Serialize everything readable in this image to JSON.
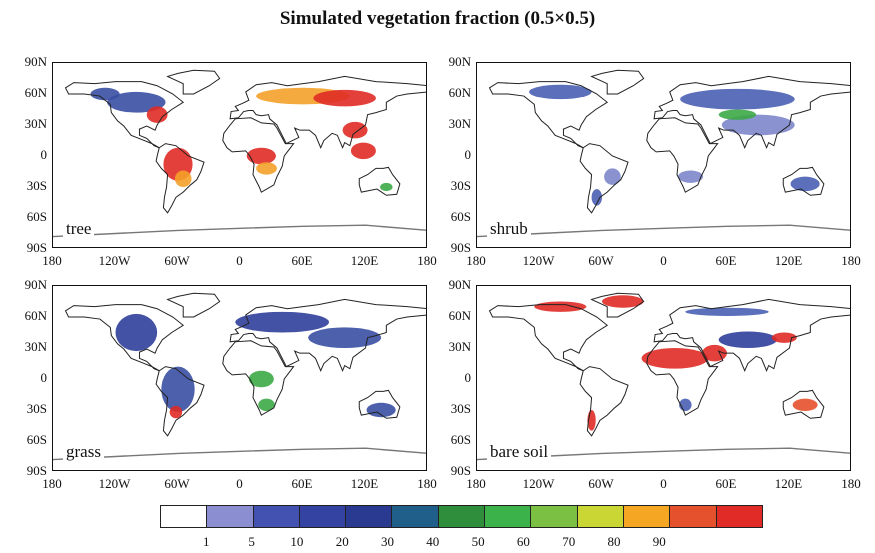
{
  "title": "Simulated vegetation fraction (0.5×0.5)",
  "panels": [
    {
      "label": "tree",
      "dominant": [
        "#e02b26",
        "#f4a12a",
        "#3ca846",
        "#3a4fa2"
      ]
    },
    {
      "label": "shrub",
      "dominant": [
        "#4a5fb2",
        "#7d86cb",
        "#3ca846",
        "#2f3f9a"
      ]
    },
    {
      "label": "grass",
      "dominant": [
        "#2f3f9a",
        "#3a4fa2",
        "#3ca846",
        "#e02b26"
      ]
    },
    {
      "label": "bare soil",
      "dominant": [
        "#e02b26",
        "#2f3f9a",
        "#4a5fb2",
        "#e5512d"
      ]
    }
  ],
  "lat_ticks": [
    "90N",
    "60N",
    "30N",
    "0",
    "30S",
    "60S",
    "90S"
  ],
  "lon_ticks": [
    "180",
    "120W",
    "60W",
    "0",
    "60E",
    "120E",
    "180"
  ],
  "colorbar": {
    "colors": [
      "#ffffff",
      "#8b8fd1",
      "#4352b0",
      "#3443a2",
      "#2a3a90",
      "#1f5f8a",
      "#2f8e3c",
      "#3cb34a",
      "#7cc043",
      "#c9d633",
      "#f5a623",
      "#e5512d",
      "#e02b26"
    ],
    "ticks": [
      "1",
      "5",
      "10",
      "20",
      "30",
      "40",
      "50",
      "60",
      "70",
      "80",
      "90"
    ]
  }
}
